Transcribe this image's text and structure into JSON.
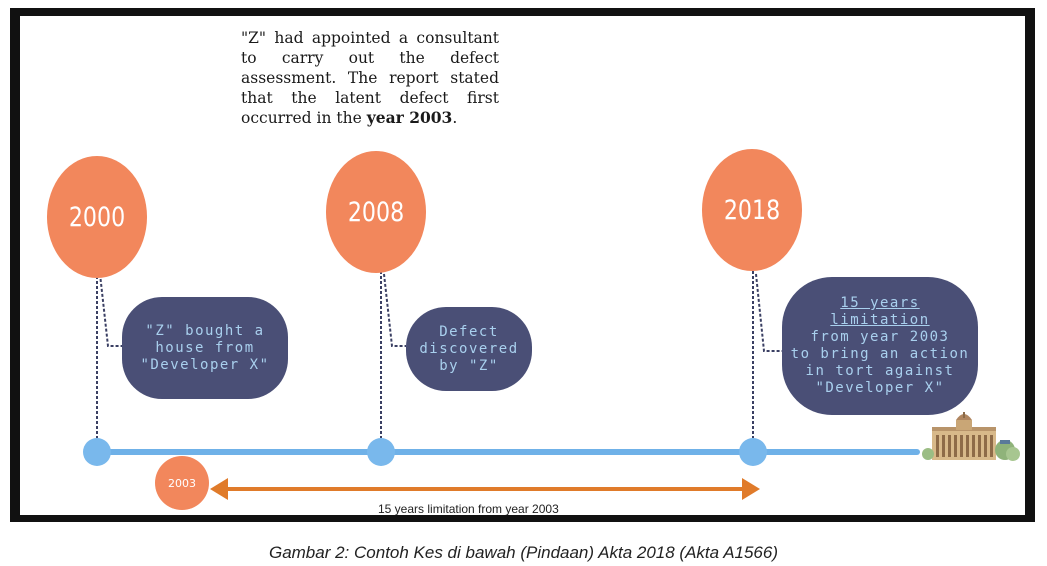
{
  "diagram": {
    "note_line1": "\"Z\" had appointed a consultant to carry out the defect assessment. The report stated that the latent defect first occurred in the",
    "note_bold": "year 2003",
    "note_end": ".",
    "milestones": [
      {
        "year": "2000",
        "lines": [
          "\"Z\" bought a",
          "house from",
          "\"Developer X\""
        ]
      },
      {
        "year": "2008",
        "lines": [
          "Defect",
          "discovered",
          "by \"Z\""
        ]
      },
      {
        "year": "2018",
        "lines_underlined": [
          "15 years",
          "limitation"
        ],
        "lines": [
          "from year 2003",
          "to bring an action",
          "in tort against",
          "\"Developer X\""
        ]
      }
    ],
    "start_marker": "2003",
    "arrow_label": "15 years limitation from year 2003"
  },
  "caption": "Gambar 2: Contoh Kes di bawah (Pindaan) Akta 2018 (Akta A1566)",
  "colors": {
    "year_circle": "#f2875c",
    "bubble": "#4a4f76",
    "bubble_text": "#a9d0ee",
    "timeline": "#6fb1e8",
    "arrow": "#e07b2a"
  }
}
